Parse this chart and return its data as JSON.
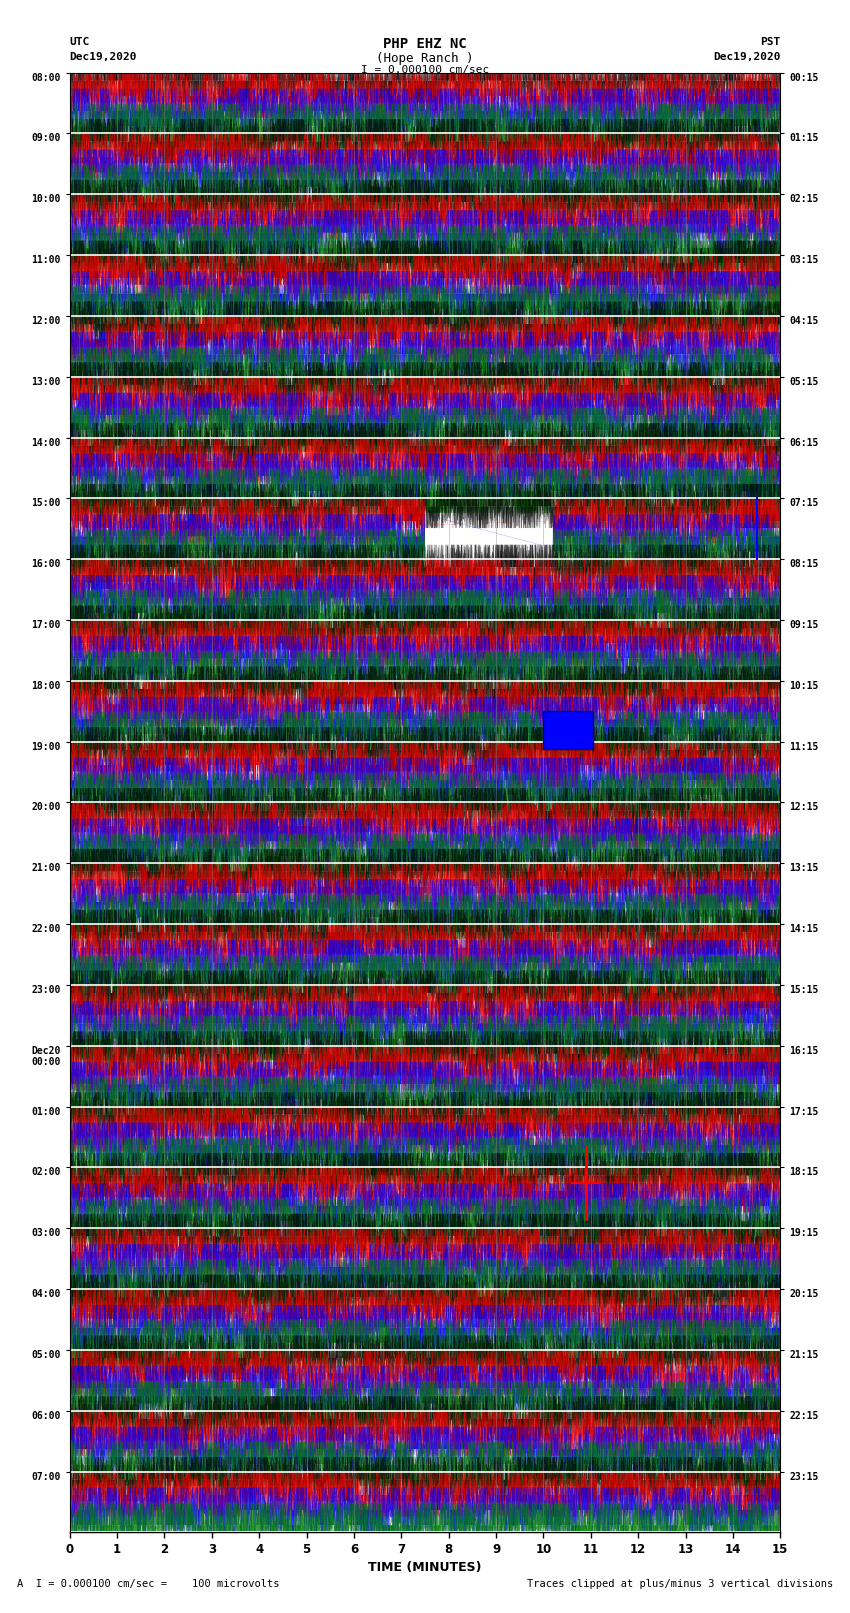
{
  "title_line1": "PHP EHZ NC",
  "title_line2": "(Hope Ranch )",
  "title_line3": "I = 0.000100 cm/sec",
  "left_header_line1": "UTC",
  "left_header_line2": "Dec19,2020",
  "right_header_line1": "PST",
  "right_header_line2": "Dec19,2020",
  "utc_times": [
    "08:00",
    "09:00",
    "10:00",
    "11:00",
    "12:00",
    "13:00",
    "14:00",
    "15:00",
    "16:00",
    "17:00",
    "18:00",
    "19:00",
    "20:00",
    "21:00",
    "22:00",
    "23:00",
    "Dec20\n00:00",
    "01:00",
    "02:00",
    "03:00",
    "04:00",
    "05:00",
    "06:00",
    "07:00"
  ],
  "pst_times": [
    "00:15",
    "01:15",
    "02:15",
    "03:15",
    "04:15",
    "05:15",
    "06:15",
    "07:15",
    "08:15",
    "09:15",
    "10:15",
    "11:15",
    "12:15",
    "13:15",
    "14:15",
    "15:15",
    "16:15",
    "17:15",
    "18:15",
    "19:15",
    "20:15",
    "21:15",
    "22:15",
    "23:15"
  ],
  "xlabel": "TIME (MINUTES)",
  "footer_left": "A  I = 0.000100 cm/sec =    100 microvolts",
  "footer_right": "Traces clipped at plus/minus 3 vertical divisions",
  "num_hour_rows": 24,
  "traces_per_hour": 4,
  "colors": [
    "black",
    "red",
    "blue",
    "green"
  ],
  "samples_per_min": 500,
  "noise_amp": 0.38,
  "fill_amp": 0.45
}
